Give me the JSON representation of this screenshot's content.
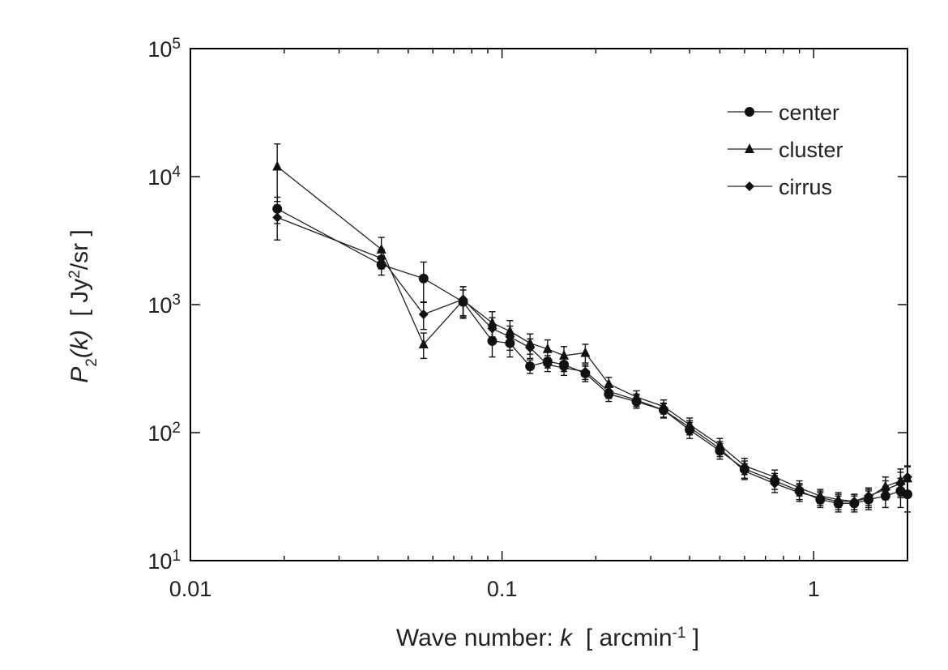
{
  "chart_data": {
    "type": "scatter",
    "title": "",
    "xlabel": {
      "prefix": "Wave number: ",
      "var": "k",
      "unit_open": "[ arcmin",
      "unit_exp": "-1",
      "unit_close": " ]"
    },
    "ylabel": {
      "var": "P",
      "sub": "2",
      "arg": "(k)",
      "unit_open": "[ Jy",
      "unit_exp": "2",
      "unit_close": "/sr ]"
    },
    "xscale": "log",
    "yscale": "log",
    "xlim": [
      0.01,
      2.0
    ],
    "ylim": [
      10,
      100000
    ],
    "x_ticks": [
      {
        "value": 0.01,
        "label": "0.01"
      },
      {
        "value": 0.1,
        "label": "0.1"
      },
      {
        "value": 1,
        "label": "1"
      }
    ],
    "y_ticks": [
      {
        "value": 10,
        "base": "10",
        "exp": "1"
      },
      {
        "value": 100,
        "base": "10",
        "exp": "2"
      },
      {
        "value": 1000,
        "base": "10",
        "exp": "3"
      },
      {
        "value": 10000,
        "base": "10",
        "exp": "4"
      },
      {
        "value": 100000,
        "base": "10",
        "exp": "5"
      }
    ],
    "legend_position": "top-right",
    "series": [
      {
        "name": "center",
        "marker": "circle",
        "x": [
          0.019,
          0.041,
          0.056,
          0.075,
          0.093,
          0.106,
          0.123,
          0.14,
          0.158,
          0.185,
          0.22,
          0.27,
          0.33,
          0.4,
          0.5,
          0.6,
          0.75,
          0.9,
          1.05,
          1.2,
          1.35,
          1.5,
          1.7,
          1.9,
          2.0
        ],
        "y": [
          5600,
          2050,
          1600,
          1050,
          520,
          500,
          330,
          360,
          340,
          290,
          200,
          175,
          150,
          105,
          72,
          52,
          42,
          35,
          30,
          28,
          28,
          30,
          32,
          35,
          33
        ],
        "err": [
          1300,
          350,
          550,
          250,
          130,
          110,
          40,
          40,
          40,
          40,
          25,
          20,
          20,
          15,
          10,
          8,
          6,
          5,
          4,
          4,
          4,
          5,
          6,
          9,
          9
        ]
      },
      {
        "name": "cluster",
        "marker": "triangle",
        "x": [
          0.019,
          0.041,
          0.056,
          0.075,
          0.093,
          0.106,
          0.123,
          0.14,
          0.158,
          0.185,
          0.22,
          0.27,
          0.33,
          0.4,
          0.5,
          0.6,
          0.75,
          0.9,
          1.05,
          1.2,
          1.35,
          1.5,
          1.7,
          1.9,
          2.0
        ],
        "y": [
          12000,
          2700,
          490,
          1080,
          720,
          620,
          500,
          450,
          400,
          420,
          240,
          190,
          160,
          115,
          80,
          55,
          45,
          37,
          32,
          30,
          29,
          31,
          38,
          42,
          44
        ],
        "err": [
          6000,
          650,
          110,
          300,
          160,
          130,
          90,
          80,
          70,
          70,
          30,
          22,
          20,
          15,
          10,
          8,
          6,
          5,
          4,
          4,
          4,
          5,
          7,
          10,
          10
        ]
      },
      {
        "name": "cirrus",
        "marker": "diamond",
        "x": [
          0.019,
          0.041,
          0.056,
          0.075,
          0.093,
          0.106,
          0.123,
          0.14,
          0.158,
          0.185,
          0.22,
          0.27,
          0.33,
          0.4,
          0.5,
          0.6,
          0.75,
          0.9,
          1.05,
          1.2,
          1.35,
          1.5,
          1.7,
          1.9,
          2.0
        ],
        "y": [
          4800,
          2300,
          840,
          1100,
          650,
          560,
          460,
          340,
          320,
          300,
          210,
          180,
          150,
          110,
          75,
          50,
          40,
          34,
          31,
          29,
          29,
          32,
          36,
          40,
          45
        ],
        "err": [
          1600,
          400,
          200,
          280,
          140,
          120,
          80,
          40,
          40,
          40,
          25,
          20,
          18,
          14,
          10,
          7,
          6,
          5,
          4,
          4,
          4,
          5,
          6,
          9,
          10
        ]
      }
    ]
  }
}
